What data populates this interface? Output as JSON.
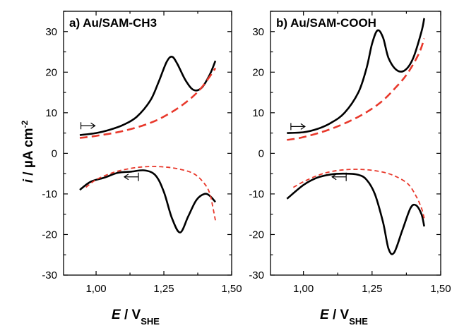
{
  "chart_data": [
    {
      "type": "line",
      "title": "a) Au/SAM-CH3",
      "xlabel": "E / V_SHE",
      "ylabel": "i / µA cm^-2",
      "xlim": [
        0.88,
        1.5
      ],
      "ylim": [
        -30,
        35
      ],
      "x_ticks": [
        "1,00",
        "1,25",
        "1,50"
      ],
      "y_ticks": [
        "30",
        "20",
        "10",
        "0",
        "-10",
        "-20",
        "-30"
      ],
      "grid": false,
      "series": [
        {
          "style": "solid",
          "color": "#000000",
          "segments": [
            {
              "direction": "anodic",
              "x": [
                0.94,
                1.0,
                1.05,
                1.1,
                1.15,
                1.2,
                1.23,
                1.26,
                1.28,
                1.3,
                1.33,
                1.36,
                1.39,
                1.42,
                1.44
              ],
              "y": [
                4.5,
                5.0,
                5.8,
                7.0,
                9.0,
                13.0,
                17.5,
                22.5,
                23.8,
                22.0,
                18.0,
                15.6,
                16.2,
                19.5,
                22.8
              ]
            },
            {
              "direction": "cathodic",
              "x": [
                1.44,
                1.42,
                1.4,
                1.37,
                1.34,
                1.31,
                1.28,
                1.25,
                1.22,
                1.18,
                1.13,
                1.08,
                1.03,
                0.98,
                0.94
              ],
              "y": [
                -12.0,
                -10.5,
                -10.0,
                -11.5,
                -15.5,
                -19.5,
                -16.0,
                -9.5,
                -5.5,
                -4.2,
                -4.5,
                -4.8,
                -6.0,
                -7.0,
                -9.0
              ]
            }
          ]
        },
        {
          "style": "dashed",
          "color": "#e8382b",
          "segments": [
            {
              "direction": "anodic",
              "x": [
                0.94,
                1.0,
                1.1,
                1.2,
                1.27,
                1.33,
                1.38,
                1.42,
                1.44
              ],
              "y": [
                3.8,
                4.3,
                5.5,
                7.5,
                9.8,
                12.5,
                15.5,
                19.0,
                21.0
              ]
            },
            {
              "direction": "cathodic",
              "x": [
                1.44,
                1.43,
                1.42,
                1.4,
                1.36,
                1.3,
                1.24,
                1.18,
                1.12,
                1.06,
                1.0,
                0.96
              ],
              "y": [
                -16.5,
                -13.0,
                -10.0,
                -7.5,
                -5.0,
                -3.8,
                -3.3,
                -3.3,
                -3.8,
                -4.8,
                -6.5,
                -8.5
              ]
            }
          ]
        }
      ],
      "annotations": [
        {
          "type": "arrow",
          "direction": "right",
          "near": [
            0.97,
            6.8
          ]
        },
        {
          "type": "arrow",
          "direction": "left",
          "near": [
            1.13,
            -5.8
          ]
        }
      ]
    },
    {
      "type": "line",
      "title": "b) Au/SAM-COOH",
      "xlabel": "E / V_SHE",
      "ylabel": "",
      "xlim": [
        0.88,
        1.5
      ],
      "ylim": [
        -30,
        35
      ],
      "x_ticks": [
        "1,00",
        "1,25",
        "1,50"
      ],
      "y_ticks": [
        "30",
        "20",
        "10",
        "0",
        "-10",
        "-20",
        "-30"
      ],
      "grid": false,
      "series": [
        {
          "style": "solid",
          "color": "#000000",
          "segments": [
            {
              "direction": "anodic",
              "x": [
                0.94,
                1.0,
                1.05,
                1.1,
                1.15,
                1.2,
                1.23,
                1.25,
                1.27,
                1.29,
                1.31,
                1.34,
                1.37,
                1.4,
                1.43,
                1.44
              ],
              "y": [
                5.0,
                5.2,
                6.0,
                7.5,
                10.0,
                15.0,
                21.0,
                27.0,
                30.3,
                28.5,
                23.5,
                20.5,
                20.5,
                23.5,
                30.0,
                33.3
              ]
            },
            {
              "direction": "cathodic",
              "x": [
                1.44,
                1.43,
                1.41,
                1.39,
                1.36,
                1.33,
                1.31,
                1.29,
                1.26,
                1.23,
                1.2,
                1.15,
                1.1,
                1.05,
                1.0,
                0.94
              ],
              "y": [
                -18.0,
                -15.0,
                -12.8,
                -13.5,
                -19.0,
                -24.5,
                -23.5,
                -17.0,
                -10.0,
                -6.5,
                -5.3,
                -5.0,
                -5.2,
                -6.0,
                -7.8,
                -11.2
              ]
            }
          ]
        },
        {
          "style": "dashed",
          "color": "#e8382b",
          "segments": [
            {
              "direction": "anodic",
              "x": [
                0.94,
                1.0,
                1.1,
                1.2,
                1.28,
                1.34,
                1.38,
                1.42,
                1.44
              ],
              "y": [
                3.3,
                4.0,
                6.0,
                9.0,
                12.5,
                16.5,
                19.8,
                24.5,
                28.3
              ]
            },
            {
              "direction": "cathodic",
              "x": [
                1.44,
                1.43,
                1.41,
                1.38,
                1.33,
                1.28,
                1.22,
                1.16,
                1.1,
                1.05,
                1.0,
                0.96
              ],
              "y": [
                -16.0,
                -13.5,
                -10.5,
                -7.5,
                -5.5,
                -4.5,
                -4.0,
                -4.0,
                -4.5,
                -5.5,
                -7.0,
                -8.5
              ]
            }
          ]
        }
      ],
      "annotations": [
        {
          "type": "arrow",
          "direction": "right",
          "near": [
            0.98,
            6.6
          ]
        },
        {
          "type": "arrow",
          "direction": "left",
          "near": [
            1.13,
            -5.8
          ]
        }
      ]
    }
  ],
  "axis_text": {
    "ylabel_i": "i",
    "ylabel_units": " / µA cm",
    "ylabel_exp": "-2",
    "xlabel_e": "E",
    "xlabel_v": " / V",
    "xlabel_sub": "SHE"
  }
}
